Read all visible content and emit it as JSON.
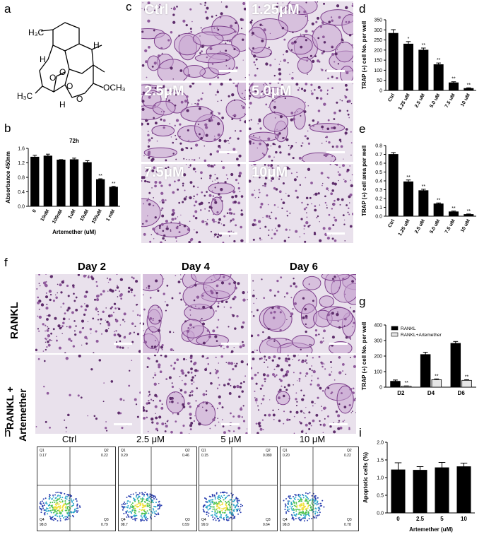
{
  "panels": {
    "a": "a",
    "b": "b",
    "c": "c",
    "d": "d",
    "e": "e",
    "f": "f",
    "g": "g",
    "h": "h",
    "i": "i"
  },
  "structure": {
    "labels": [
      "H₃C",
      "H",
      "H",
      "O",
      "O",
      "O",
      "H₃C",
      "O",
      "H",
      "OCH₃"
    ]
  },
  "micrographs_c": [
    "Ctrl",
    "1.25μM",
    "2.5μM",
    "5.0μM",
    "7.5μM",
    "10μM"
  ],
  "panel_f": {
    "days": [
      "Day 2",
      "Day 4",
      "Day 6"
    ],
    "rows": [
      "RANKL",
      "RANKL +",
      "Artemether"
    ]
  },
  "panel_h": {
    "conditions": [
      "Ctrl",
      "2.5 μM",
      "5 μM",
      "10 μM"
    ],
    "quadrants": [
      {
        "q1": "Q1",
        "q1v": "0.17",
        "q2": "Q2",
        "q2v": "0.22",
        "q3": "Q3",
        "q3v": "0.79",
        "q4": "Q4",
        "q4v": "98.8"
      },
      {
        "q1": "Q1",
        "q1v": "0.29",
        "q2": "Q2",
        "q2v": "0.46",
        "q3": "Q3",
        "q3v": "0.59",
        "q4": "Q4",
        "q4v": "98.7"
      },
      {
        "q1": "Q1",
        "q1v": "0.15",
        "q2": "Q2",
        "q2v": "0.080",
        "q3": "Q3",
        "q3v": "0.64",
        "q4": "Q4",
        "q4v": "99.9"
      },
      {
        "q1": "Q1",
        "q1v": "0.20",
        "q2": "Q2",
        "q2v": "0.22",
        "q3": "Q3",
        "q3v": "0.78",
        "q4": "Q4",
        "q4v": "98.8"
      }
    ]
  },
  "chart_data": [
    {
      "id": "b",
      "type": "bar",
      "title": "72h",
      "categories": [
        "0",
        "10nM",
        "100nM",
        "1uM",
        "10uM",
        "100uM",
        "1 mM"
      ],
      "values": [
        1.36,
        1.39,
        1.28,
        1.29,
        1.21,
        0.74,
        0.53
      ],
      "errors": [
        0.05,
        0.05,
        0.01,
        0.04,
        0.05,
        0.02,
        0.02
      ],
      "sig": [
        "",
        "",
        "",
        "",
        "",
        "**",
        "**"
      ],
      "xlabel": "Artemether (uM)",
      "ylabel": "Absorbance 450nm",
      "ylim": [
        0,
        1.6
      ],
      "yticks": [
        "0.0",
        "0.4",
        "0.8",
        "1.2",
        "1.6"
      ]
    },
    {
      "id": "d",
      "type": "bar",
      "categories": [
        "Ctrl",
        "1.25 uM",
        "2.5 uM",
        "5.0 uM",
        "7.5 uM",
        "10 uM"
      ],
      "values": [
        283,
        230,
        200,
        128,
        38,
        10
      ],
      "errors": [
        18,
        12,
        10,
        8,
        5,
        3
      ],
      "sig": [
        "",
        "*",
        "**",
        "**",
        "**",
        "**"
      ],
      "ylabel": "TRAP (+) cell No. per well",
      "ylim": [
        0,
        350
      ],
      "yticks": [
        "0",
        "50",
        "100",
        "150",
        "200",
        "250",
        "300",
        "350"
      ]
    },
    {
      "id": "e",
      "type": "bar",
      "categories": [
        "Ctrl",
        "1.25 uM",
        "2.5 uM",
        "5.0 uM",
        "7.5 uM",
        "10 uM"
      ],
      "values": [
        0.7,
        0.39,
        0.29,
        0.14,
        0.05,
        0.02
      ],
      "errors": [
        0.02,
        0.02,
        0.015,
        0.01,
        0.008,
        0.005
      ],
      "sig": [
        "",
        "**",
        "**",
        "**",
        "**",
        "**"
      ],
      "ylabel": "TRAP (+) cell area per well",
      "ylim": [
        0,
        0.8
      ],
      "yticks": [
        "0.0",
        "0.1",
        "0.2",
        "0.3",
        "0.4",
        "0.5",
        "0.6",
        "0.7",
        "0.8"
      ]
    },
    {
      "id": "g",
      "type": "bar",
      "categories": [
        "D2",
        "D4",
        "D6"
      ],
      "series": [
        {
          "name": "RANKL",
          "values": [
            38,
            210,
            282
          ],
          "errors": [
            8,
            15,
            12
          ],
          "fill": "#000000"
        },
        {
          "name": "RANKL+Artemether",
          "values": [
            6,
            48,
            44
          ],
          "errors": [
            2,
            5,
            4
          ],
          "fill": "#e6e6e6"
        }
      ],
      "sig": [
        "**",
        "**",
        "**"
      ],
      "ylabel": "TRAP (+) cell No. per well",
      "ylim": [
        0,
        400
      ],
      "yticks": [
        "0",
        "100",
        "200",
        "300",
        "400"
      ],
      "legend": "top-left"
    },
    {
      "id": "i",
      "type": "bar",
      "categories": [
        "0",
        "2.5",
        "5",
        "10"
      ],
      "values": [
        1.22,
        1.21,
        1.28,
        1.31
      ],
      "errors": [
        0.2,
        0.1,
        0.15,
        0.1
      ],
      "xlabel": "Artemether (uM)",
      "ylabel": "Apoptotic cells (%)",
      "ylim": [
        0,
        2.0
      ],
      "yticks": [
        "0.0",
        "0.5",
        "1.0",
        "1.5",
        "2.0"
      ]
    }
  ],
  "colors": {
    "stain": "#9b5aa6",
    "bar": "#000000",
    "background": "#ffffff"
  }
}
